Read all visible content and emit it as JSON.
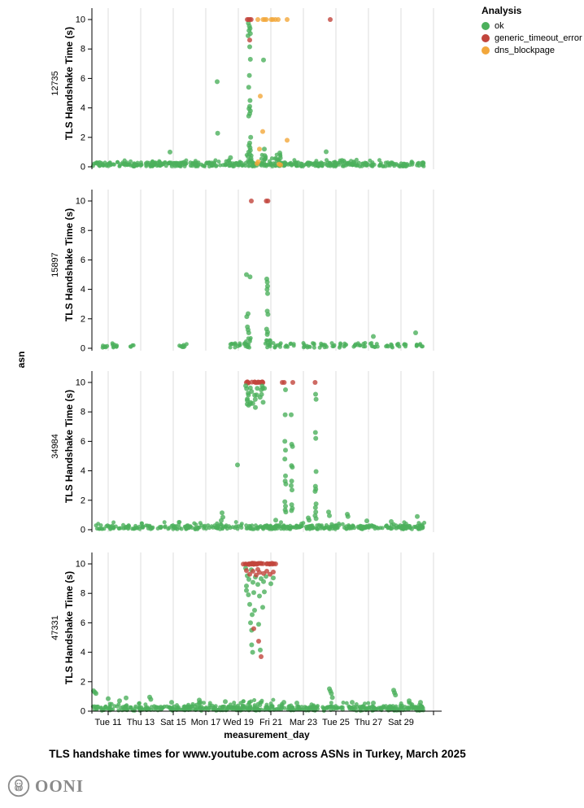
{
  "footer": {
    "brand": "OONI"
  },
  "chart_data": {
    "type": "scatter",
    "title": "TLS handshake times for www.youtube.com across ASNs in Turkey, March 2025",
    "xlabel": "measurement_day",
    "ylabel": "TLS Handshake Time (s)",
    "facet_axis_label": "asn",
    "x_domain_days": [
      10,
      31.5
    ],
    "ylim": [
      0,
      10.7
    ],
    "y_ticks": [
      0,
      2,
      4,
      6,
      8,
      10
    ],
    "grid": "vertical-only",
    "x_ticks": [
      {
        "day": 11,
        "label": "Tue 11"
      },
      {
        "day": 13,
        "label": "Thu 13"
      },
      {
        "day": 15,
        "label": "Sat 15"
      },
      {
        "day": 17,
        "label": "Mon 17"
      },
      {
        "day": 19,
        "label": "Wed 19"
      },
      {
        "day": 21,
        "label": "Fri 21"
      },
      {
        "day": 23,
        "label": "Mar 23"
      },
      {
        "day": 25,
        "label": "Tue 25"
      },
      {
        "day": 27,
        "label": "Thu 27"
      },
      {
        "day": 29,
        "label": "Sat 29"
      }
    ],
    "legend": {
      "title": "Analysis",
      "position": "top-right",
      "items": [
        {
          "label": "ok",
          "key": "ok",
          "color": "#4CB05C"
        },
        {
          "label": "generic_timeout_error",
          "key": "generic_timeout_error",
          "color": "#C2453C"
        },
        {
          "label": "dns_blockpage",
          "key": "dns_blockpage",
          "color": "#F2A73B"
        }
      ]
    },
    "facets": [
      {
        "asn": "12735",
        "points": {
          "ok": [
            [
              19.62,
              9.75
            ],
            [
              19.68,
              9.55
            ],
            [
              19.72,
              9.4
            ],
            [
              19.66,
              9.25
            ],
            [
              19.74,
              9.05
            ],
            [
              19.6,
              8.9
            ],
            [
              19.7,
              8.15
            ],
            [
              19.74,
              7.3
            ],
            [
              19.68,
              6.2
            ],
            [
              19.64,
              5.4
            ],
            [
              19.72,
              4.5
            ],
            [
              19.7,
              4.1
            ],
            [
              19.66,
              3.95
            ],
            [
              19.74,
              3.8
            ],
            [
              19.7,
              3.6
            ],
            [
              19.64,
              3.45
            ],
            [
              19.76,
              2.0
            ],
            [
              19.7,
              1.62
            ],
            [
              19.66,
              1.45
            ],
            [
              19.72,
              1.3
            ],
            [
              19.74,
              1.12
            ],
            [
              19.64,
              1.0
            ],
            [
              19.7,
              0.86
            ],
            [
              19.6,
              0.7
            ],
            [
              19.78,
              0.56
            ],
            [
              20.55,
              7.25
            ],
            [
              17.7,
              5.78
            ],
            [
              17.73,
              2.28
            ],
            [
              18.52,
              0.62
            ],
            [
              14.8,
              1.0
            ],
            [
              20.6,
              1.2
            ],
            [
              20.62,
              0.76
            ],
            [
              20.66,
              0.56
            ],
            [
              21.55,
              0.94
            ],
            [
              21.58,
              0.6
            ],
            [
              24.4,
              1.02
            ]
          ],
          "generic_timeout_error": [
            [
              19.55,
              10
            ],
            [
              19.63,
              10
            ],
            [
              19.71,
              10
            ],
            [
              19.79,
              10
            ],
            [
              24.65,
              10
            ],
            [
              19.7,
              8.6
            ]
          ],
          "dns_blockpage": [
            [
              20.2,
              10
            ],
            [
              20.52,
              10
            ],
            [
              20.62,
              10
            ],
            [
              20.72,
              10
            ],
            [
              21.02,
              10
            ],
            [
              21.12,
              10
            ],
            [
              21.28,
              10
            ],
            [
              21.45,
              10
            ],
            [
              22.0,
              10
            ],
            [
              20.35,
              4.8
            ],
            [
              20.5,
              2.4
            ],
            [
              22.0,
              1.8
            ],
            [
              20.3,
              1.2
            ],
            [
              20.15,
              0.22
            ],
            [
              20.22,
              0.34
            ],
            [
              21.5,
              0.18
            ],
            [
              21.6,
              0.12
            ]
          ]
        },
        "noise_bands": [
          [
            10.05,
            30.4,
            0.02,
            0.3,
            420,
            "ok"
          ],
          [
            10.05,
            30.4,
            0.26,
            0.48,
            45,
            "ok"
          ],
          [
            19.3,
            21.6,
            0.3,
            0.85,
            22,
            "ok"
          ]
        ]
      },
      {
        "asn": "15897",
        "points": {
          "ok": [
            [
              19.5,
              5.0
            ],
            [
              19.72,
              4.85
            ],
            [
              20.75,
              4.7
            ],
            [
              20.78,
              4.5
            ],
            [
              20.8,
              4.22
            ],
            [
              20.77,
              4.0
            ],
            [
              20.8,
              3.72
            ],
            [
              20.78,
              2.52
            ],
            [
              20.82,
              2.3
            ],
            [
              19.6,
              2.35
            ],
            [
              19.52,
              2.15
            ],
            [
              19.56,
              1.45
            ],
            [
              19.6,
              1.25
            ],
            [
              19.64,
              1.05
            ],
            [
              20.74,
              1.3
            ],
            [
              20.8,
              1.1
            ],
            [
              20.78,
              0.94
            ],
            [
              27.3,
              0.8
            ],
            [
              29.9,
              1.05
            ]
          ],
          "generic_timeout_error": [
            [
              19.8,
              10
            ],
            [
              20.72,
              10
            ],
            [
              20.82,
              10
            ]
          ],
          "dns_blockpage": []
        },
        "clusters": {
          "days": [
            10.75,
            10.85,
            11.35,
            11.45,
            12.45,
            15.5,
            15.75,
            18.55,
            18.8,
            19.05,
            19.35,
            21.2,
            21.5,
            21.95,
            22.3,
            23.05,
            23.3,
            23.6,
            24.1,
            24.35,
            24.8,
            25.3,
            25.55,
            26.15,
            26.4,
            26.8,
            27.15,
            27.45,
            28.1,
            28.4,
            28.8,
            29.2,
            29.95,
            30.25
          ],
          "spread": 0.12,
          "v0": 0.04,
          "v1": 0.36,
          "n": 4,
          "category": "ok"
        },
        "noise_bands": [
          [
            19.45,
            19.85,
            0.05,
            0.72,
            12,
            "ok"
          ],
          [
            20.65,
            21.05,
            0.05,
            0.6,
            12,
            "ok"
          ]
        ]
      },
      {
        "asn": "34984",
        "points": {
          "ok": [
            [
              20.05,
              8.3
            ],
            [
              21.9,
              9.5
            ],
            [
              21.88,
              7.8
            ],
            [
              21.86,
              6.0
            ],
            [
              21.9,
              5.4
            ],
            [
              21.86,
              4.8
            ],
            [
              21.9,
              3.65
            ],
            [
              21.88,
              3.3
            ],
            [
              21.92,
              3.1
            ],
            [
              21.86,
              1.9
            ],
            [
              21.9,
              1.6
            ],
            [
              21.88,
              1.35
            ],
            [
              21.92,
              1.2
            ],
            [
              22.25,
              7.8
            ],
            [
              22.28,
              5.8
            ],
            [
              22.33,
              5.65
            ],
            [
              22.27,
              4.35
            ],
            [
              22.32,
              4.25
            ],
            [
              22.28,
              3.3
            ],
            [
              22.25,
              3.0
            ],
            [
              22.3,
              2.7
            ],
            [
              22.28,
              1.7
            ],
            [
              22.32,
              1.45
            ],
            [
              22.27,
              1.3
            ],
            [
              23.75,
              9.2
            ],
            [
              23.78,
              8.85
            ],
            [
              23.74,
              6.6
            ],
            [
              23.76,
              6.2
            ],
            [
              23.78,
              3.95
            ],
            [
              23.74,
              2.95
            ],
            [
              23.76,
              2.75
            ],
            [
              23.72,
              2.6
            ],
            [
              23.78,
              1.75
            ],
            [
              23.74,
              1.5
            ],
            [
              23.76,
              1.2
            ],
            [
              23.72,
              0.95
            ],
            [
              23.78,
              0.75
            ],
            [
              18.95,
              4.4
            ],
            [
              18.0,
              1.15
            ],
            [
              18.05,
              0.85
            ],
            [
              17.95,
              0.62
            ],
            [
              24.55,
              1.2
            ],
            [
              24.6,
              0.95
            ],
            [
              25.7,
              1.05
            ],
            [
              25.74,
              0.9
            ],
            [
              30.0,
              0.9
            ],
            [
              21.3,
              0.65
            ],
            [
              26.9,
              0.6
            ],
            [
              28.4,
              0.55
            ],
            [
              23.3,
              0.8
            ],
            [
              23.35,
              0.65
            ]
          ],
          "generic_timeout_error": [
            [
              21.7,
              10
            ],
            [
              21.82,
              10
            ],
            [
              22.35,
              10
            ],
            [
              23.72,
              10
            ]
          ],
          "dns_blockpage": []
        },
        "noise_bands": [
          [
            19.48,
            20.58,
            9.96,
            10.04,
            16,
            "generic_timeout_error"
          ],
          [
            19.42,
            20.68,
            8.45,
            9.8,
            24,
            "ok"
          ],
          [
            10.2,
            19.35,
            0.03,
            0.3,
            130,
            "ok"
          ],
          [
            19.4,
            30.45,
            0.03,
            0.3,
            240,
            "ok"
          ],
          [
            10.2,
            30.45,
            0.26,
            0.52,
            35,
            "ok"
          ]
        ]
      },
      {
        "asn": "47331",
        "points": {
          "ok": [
            [
              19.45,
              9.7
            ],
            [
              19.55,
              9.2
            ],
            [
              19.65,
              8.95
            ],
            [
              19.8,
              9.6
            ],
            [
              19.9,
              8.75
            ],
            [
              20.05,
              9.1
            ],
            [
              20.2,
              8.6
            ],
            [
              20.4,
              9.0
            ],
            [
              20.55,
              8.8
            ],
            [
              20.7,
              9.15
            ],
            [
              21.0,
              8.65
            ],
            [
              21.15,
              9.05
            ],
            [
              19.5,
              8.5
            ],
            [
              19.5,
              8.2
            ],
            [
              19.62,
              7.9
            ],
            [
              19.95,
              8.05
            ],
            [
              20.3,
              7.82
            ],
            [
              20.6,
              8.1
            ],
            [
              19.7,
              7.25
            ],
            [
              20.0,
              6.85
            ],
            [
              20.5,
              7.05
            ],
            [
              19.85,
              6.55
            ],
            [
              19.75,
              6.0
            ],
            [
              19.82,
              5.5
            ],
            [
              20.25,
              5.9
            ],
            [
              19.82,
              4.5
            ],
            [
              19.88,
              4.0
            ],
            [
              20.35,
              4.15
            ],
            [
              10.1,
              1.38
            ],
            [
              10.18,
              1.28
            ],
            [
              10.25,
              1.2
            ],
            [
              11.0,
              0.85
            ],
            [
              11.7,
              0.7
            ],
            [
              12.1,
              0.9
            ],
            [
              13.55,
              0.95
            ],
            [
              13.62,
              0.8
            ],
            [
              14.9,
              0.6
            ],
            [
              16.6,
              0.75
            ],
            [
              16.66,
              0.6
            ],
            [
              18.2,
              0.65
            ],
            [
              21.8,
              0.6
            ],
            [
              22.6,
              0.55
            ],
            [
              24.6,
              1.52
            ],
            [
              24.66,
              1.36
            ],
            [
              24.72,
              1.2
            ],
            [
              24.78,
              0.92
            ],
            [
              26.0,
              0.6
            ],
            [
              27.3,
              0.55
            ],
            [
              28.55,
              1.42
            ],
            [
              28.6,
              1.26
            ],
            [
              28.66,
              1.1
            ],
            [
              29.5,
              0.7
            ],
            [
              30.2,
              0.6
            ]
          ],
          "generic_timeout_error": [
            [
              19.5,
              9.55
            ],
            [
              19.7,
              9.3
            ],
            [
              19.9,
              9.5
            ],
            [
              20.1,
              9.25
            ],
            [
              20.3,
              9.42
            ],
            [
              20.55,
              9.35
            ],
            [
              20.75,
              9.5
            ],
            [
              20.95,
              9.3
            ],
            [
              21.15,
              9.45
            ],
            [
              20.2,
              9.62
            ],
            [
              19.95,
              5.6
            ],
            [
              20.25,
              4.75
            ],
            [
              20.4,
              3.7
            ]
          ],
          "dns_blockpage": []
        },
        "noise_bands": [
          [
            19.28,
            21.32,
            9.96,
            10.04,
            30,
            "generic_timeout_error"
          ],
          [
            10.05,
            30.45,
            0.03,
            0.35,
            430,
            "ok"
          ],
          [
            10.05,
            30.45,
            0.3,
            0.58,
            55,
            "ok"
          ],
          [
            19.3,
            21.5,
            0.35,
            0.8,
            10,
            "ok"
          ]
        ]
      }
    ]
  }
}
